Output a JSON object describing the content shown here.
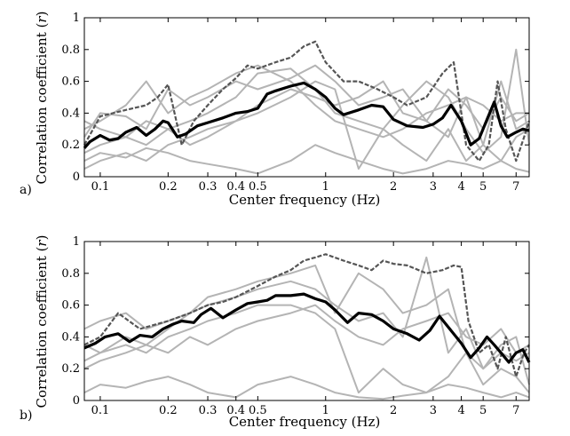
{
  "chart_data": [
    {
      "type": "line",
      "panel_label": "a)",
      "xlabel": "Center frequency (Hz)",
      "ylabel_main": "Correlation coefficient (",
      "ylabel_var": "r",
      "ylabel_end": ")",
      "xscale": "log",
      "xlim": [
        0.085,
        8.0
      ],
      "ylim": [
        0,
        1
      ],
      "xticks": [
        {
          "v": 0.1,
          "label": "0.1"
        },
        {
          "v": 0.2,
          "label": "0.2"
        },
        {
          "v": 0.3,
          "label": "0.3"
        },
        {
          "v": 0.4,
          "label": "0.4"
        },
        {
          "v": 0.5,
          "label": "0.5"
        },
        {
          "v": 1,
          "label": "1"
        },
        {
          "v": 2,
          "label": "2"
        },
        {
          "v": 3,
          "label": "3"
        },
        {
          "v": 4,
          "label": "4"
        },
        {
          "v": 5,
          "label": "5"
        },
        {
          "v": 7,
          "label": "7"
        }
      ],
      "yticks": [
        {
          "v": 0,
          "label": "0"
        },
        {
          "v": 0.2,
          "label": "0.2"
        },
        {
          "v": 0.4,
          "label": "0.4"
        },
        {
          "v": 0.6,
          "label": "0.6"
        },
        {
          "v": 0.8,
          "label": "0.8"
        },
        {
          "v": 1,
          "label": "1"
        }
      ],
      "series": [
        {
          "name": "station-1",
          "style": "gray",
          "x": [
            0.085,
            0.1,
            0.13,
            0.16,
            0.2,
            0.25,
            0.3,
            0.4,
            0.5,
            0.7,
            0.9,
            1.1,
            1.4,
            1.8,
            2.2,
            2.8,
            3.5,
            4.2,
            5,
            6,
            7,
            8
          ],
          "y": [
            0.25,
            0.4,
            0.38,
            0.3,
            0.55,
            0.45,
            0.5,
            0.6,
            0.55,
            0.62,
            0.7,
            0.6,
            0.45,
            0.5,
            0.55,
            0.35,
            0.25,
            0.5,
            0.2,
            0.6,
            0.3,
            0.35
          ]
        },
        {
          "name": "station-2",
          "style": "gray",
          "x": [
            0.085,
            0.1,
            0.13,
            0.16,
            0.2,
            0.25,
            0.3,
            0.4,
            0.5,
            0.7,
            0.9,
            1.1,
            1.4,
            1.8,
            2.2,
            2.8,
            3.5,
            4.2,
            5,
            6,
            7,
            8
          ],
          "y": [
            0.15,
            0.2,
            0.25,
            0.2,
            0.3,
            0.35,
            0.4,
            0.5,
            0.65,
            0.68,
            0.55,
            0.4,
            0.35,
            0.3,
            0.45,
            0.6,
            0.5,
            0.3,
            0.15,
            0.25,
            0.8,
            0.2
          ]
        },
        {
          "name": "station-3",
          "style": "gray",
          "x": [
            0.085,
            0.1,
            0.13,
            0.16,
            0.2,
            0.25,
            0.3,
            0.4,
            0.5,
            0.7,
            0.9,
            1.1,
            1.4,
            1.8,
            2.2,
            2.8,
            3.5,
            4.2,
            5,
            6,
            7,
            8
          ],
          "y": [
            0.05,
            0.1,
            0.15,
            0.1,
            0.2,
            0.25,
            0.3,
            0.35,
            0.4,
            0.5,
            0.6,
            0.55,
            0.05,
            0.3,
            0.2,
            0.1,
            0.3,
            0.1,
            0.2,
            0.1,
            0.25,
            0.3
          ]
        },
        {
          "name": "station-4",
          "style": "gray",
          "x": [
            0.085,
            0.1,
            0.13,
            0.16,
            0.2,
            0.25,
            0.3,
            0.4,
            0.5,
            0.7,
            0.9,
            1.1,
            1.4,
            1.8,
            2.2,
            2.8,
            3.5,
            4.2,
            5,
            6,
            7,
            8
          ],
          "y": [
            0.3,
            0.35,
            0.45,
            0.6,
            0.4,
            0.5,
            0.55,
            0.65,
            0.7,
            0.6,
            0.45,
            0.35,
            0.3,
            0.25,
            0.3,
            0.4,
            0.45,
            0.5,
            0.45,
            0.35,
            0.4,
            0.4
          ]
        },
        {
          "name": "station-5",
          "style": "gray",
          "x": [
            0.085,
            0.1,
            0.13,
            0.16,
            0.2,
            0.25,
            0.3,
            0.4,
            0.5,
            0.7,
            0.9,
            1.1,
            1.4,
            1.8,
            2.2,
            2.8,
            3.5,
            4.2,
            5,
            6,
            7,
            8
          ],
          "y": [
            0.1,
            0.15,
            0.12,
            0.18,
            0.15,
            0.1,
            0.08,
            0.05,
            0.02,
            0.1,
            0.2,
            0.15,
            0.1,
            0.05,
            0.02,
            0.05,
            0.1,
            0.08,
            0.05,
            0.1,
            0.05,
            0.03
          ]
        },
        {
          "name": "station-6",
          "style": "gray",
          "x": [
            0.085,
            0.1,
            0.13,
            0.16,
            0.2,
            0.25,
            0.3,
            0.4,
            0.5,
            0.7,
            0.9,
            1.1,
            1.4,
            1.8,
            2.2,
            2.8,
            3.5,
            4.2,
            5,
            6,
            7,
            8
          ],
          "y": [
            0.35,
            0.3,
            0.25,
            0.35,
            0.3,
            0.2,
            0.25,
            0.35,
            0.45,
            0.55,
            0.5,
            0.45,
            0.5,
            0.6,
            0.4,
            0.35,
            0.55,
            0.45,
            0.3,
            0.5,
            0.35,
            0.4
          ]
        },
        {
          "name": "dashed",
          "style": "dash",
          "x": [
            0.085,
            0.1,
            0.13,
            0.16,
            0.18,
            0.2,
            0.23,
            0.26,
            0.3,
            0.35,
            0.4,
            0.45,
            0.5,
            0.6,
            0.7,
            0.8,
            0.9,
            1.0,
            1.2,
            1.4,
            1.7,
            2.0,
            2.3,
            2.8,
            3.3,
            3.7,
            4.2,
            4.8,
            5.3,
            5.8,
            6.3,
            7.0,
            7.6,
            8.0
          ],
          "y": [
            0.2,
            0.38,
            0.42,
            0.45,
            0.5,
            0.58,
            0.2,
            0.35,
            0.45,
            0.55,
            0.62,
            0.7,
            0.68,
            0.72,
            0.75,
            0.82,
            0.85,
            0.72,
            0.6,
            0.6,
            0.55,
            0.5,
            0.45,
            0.5,
            0.65,
            0.72,
            0.2,
            0.1,
            0.2,
            0.6,
            0.3,
            0.1,
            0.25,
            0.35
          ]
        },
        {
          "name": "mean",
          "style": "mean",
          "x": [
            0.085,
            0.09,
            0.1,
            0.11,
            0.12,
            0.13,
            0.145,
            0.16,
            0.175,
            0.19,
            0.2,
            0.22,
            0.24,
            0.27,
            0.3,
            0.35,
            0.4,
            0.45,
            0.5,
            0.55,
            0.6,
            0.7,
            0.8,
            0.9,
            1.0,
            1.1,
            1.2,
            1.4,
            1.6,
            1.8,
            2.0,
            2.3,
            2.7,
            3.0,
            3.3,
            3.6,
            4.0,
            4.4,
            4.8,
            5.2,
            5.6,
            6.0,
            6.4,
            7.0,
            7.5,
            8.0
          ],
          "y": [
            0.18,
            0.22,
            0.26,
            0.23,
            0.24,
            0.28,
            0.31,
            0.26,
            0.3,
            0.35,
            0.34,
            0.25,
            0.27,
            0.32,
            0.34,
            0.37,
            0.4,
            0.41,
            0.43,
            0.52,
            0.54,
            0.57,
            0.59,
            0.55,
            0.5,
            0.43,
            0.39,
            0.42,
            0.45,
            0.44,
            0.36,
            0.32,
            0.31,
            0.33,
            0.37,
            0.45,
            0.35,
            0.2,
            0.24,
            0.36,
            0.47,
            0.32,
            0.25,
            0.28,
            0.3,
            0.29
          ]
        }
      ]
    },
    {
      "type": "line",
      "panel_label": "b)",
      "xlabel": "Center frequency (Hz)",
      "ylabel_main": "Correlation coefficient (",
      "ylabel_var": "r",
      "ylabel_end": ")",
      "xscale": "log",
      "xlim": [
        0.085,
        8.0
      ],
      "ylim": [
        0,
        1
      ],
      "xticks": [
        {
          "v": 0.1,
          "label": "0.1"
        },
        {
          "v": 0.2,
          "label": "0.2"
        },
        {
          "v": 0.3,
          "label": "0.3"
        },
        {
          "v": 0.4,
          "label": "0.4"
        },
        {
          "v": 0.5,
          "label": "0.5"
        },
        {
          "v": 1,
          "label": "1"
        },
        {
          "v": 2,
          "label": "2"
        },
        {
          "v": 3,
          "label": "3"
        },
        {
          "v": 4,
          "label": "4"
        },
        {
          "v": 5,
          "label": "5"
        },
        {
          "v": 7,
          "label": "7"
        }
      ],
      "yticks": [
        {
          "v": 0,
          "label": "0"
        },
        {
          "v": 0.2,
          "label": "0.2"
        },
        {
          "v": 0.4,
          "label": "0.4"
        },
        {
          "v": 0.6,
          "label": "0.6"
        },
        {
          "v": 0.8,
          "label": "0.8"
        },
        {
          "v": 1,
          "label": "1"
        }
      ],
      "series": [
        {
          "name": "station-1",
          "style": "gray",
          "x": [
            0.085,
            0.1,
            0.13,
            0.16,
            0.2,
            0.25,
            0.3,
            0.4,
            0.5,
            0.7,
            0.9,
            1.1,
            1.4,
            1.8,
            2.2,
            2.8,
            3.5,
            4.2,
            5,
            6,
            7,
            8
          ],
          "y": [
            0.45,
            0.5,
            0.55,
            0.45,
            0.5,
            0.55,
            0.65,
            0.7,
            0.75,
            0.8,
            0.85,
            0.55,
            0.8,
            0.7,
            0.55,
            0.6,
            0.7,
            0.3,
            0.2,
            0.35,
            0.4,
            0.1
          ]
        },
        {
          "name": "station-2",
          "style": "gray",
          "x": [
            0.085,
            0.1,
            0.13,
            0.16,
            0.2,
            0.25,
            0.3,
            0.4,
            0.5,
            0.7,
            0.9,
            1.1,
            1.4,
            1.8,
            2.2,
            2.8,
            3.5,
            4.2,
            5,
            6,
            7,
            8
          ],
          "y": [
            0.35,
            0.3,
            0.4,
            0.35,
            0.45,
            0.55,
            0.6,
            0.65,
            0.7,
            0.75,
            0.7,
            0.6,
            0.5,
            0.55,
            0.4,
            0.9,
            0.3,
            0.45,
            0.2,
            0.3,
            0.25,
            0.3
          ]
        },
        {
          "name": "station-3",
          "style": "gray",
          "x": [
            0.085,
            0.1,
            0.13,
            0.16,
            0.2,
            0.25,
            0.3,
            0.4,
            0.5,
            0.7,
            0.9,
            1.1,
            1.4,
            1.8,
            2.2,
            2.8,
            3.5,
            4.2,
            5,
            6,
            7,
            8
          ],
          "y": [
            0.25,
            0.3,
            0.35,
            0.3,
            0.4,
            0.45,
            0.5,
            0.55,
            0.6,
            0.6,
            0.55,
            0.45,
            0.05,
            0.2,
            0.1,
            0.05,
            0.15,
            0.3,
            0.1,
            0.2,
            0.15,
            0.05
          ]
        },
        {
          "name": "station-4",
          "style": "gray",
          "x": [
            0.085,
            0.1,
            0.13,
            0.16,
            0.2,
            0.25,
            0.3,
            0.4,
            0.5,
            0.7,
            0.9,
            1.1,
            1.4,
            1.8,
            2.2,
            2.8,
            3.5,
            4.2,
            5,
            6,
            7,
            8
          ],
          "y": [
            0.05,
            0.1,
            0.08,
            0.12,
            0.15,
            0.1,
            0.05,
            0.02,
            0.1,
            0.15,
            0.1,
            0.05,
            0.02,
            0.01,
            0.03,
            0.05,
            0.1,
            0.08,
            0.05,
            0.02,
            0.05,
            0.02
          ]
        },
        {
          "name": "station-5",
          "style": "gray",
          "x": [
            0.085,
            0.1,
            0.13,
            0.16,
            0.2,
            0.25,
            0.3,
            0.4,
            0.5,
            0.7,
            0.9,
            1.1,
            1.4,
            1.8,
            2.2,
            2.8,
            3.5,
            4.2,
            5,
            6,
            7,
            8
          ],
          "y": [
            0.2,
            0.25,
            0.3,
            0.35,
            0.3,
            0.4,
            0.35,
            0.45,
            0.5,
            0.55,
            0.6,
            0.5,
            0.4,
            0.35,
            0.45,
            0.5,
            0.55,
            0.4,
            0.35,
            0.45,
            0.3,
            0.35
          ]
        },
        {
          "name": "dashed",
          "style": "dash",
          "x": [
            0.085,
            0.1,
            0.12,
            0.15,
            0.2,
            0.25,
            0.3,
            0.35,
            0.4,
            0.5,
            0.6,
            0.7,
            0.8,
            0.9,
            1.0,
            1.2,
            1.4,
            1.6,
            1.8,
            2.0,
            2.3,
            2.8,
            3.3,
            3.7,
            4.0,
            4.3,
            4.8,
            5.3,
            5.8,
            6.3,
            7.0,
            7.6,
            8.0
          ],
          "y": [
            0.35,
            0.4,
            0.55,
            0.45,
            0.5,
            0.55,
            0.6,
            0.62,
            0.65,
            0.72,
            0.78,
            0.82,
            0.88,
            0.9,
            0.92,
            0.88,
            0.85,
            0.82,
            0.88,
            0.86,
            0.85,
            0.8,
            0.82,
            0.85,
            0.84,
            0.5,
            0.3,
            0.35,
            0.2,
            0.4,
            0.15,
            0.3,
            0.35
          ]
        },
        {
          "name": "mean",
          "style": "mean",
          "x": [
            0.085,
            0.095,
            0.105,
            0.12,
            0.135,
            0.15,
            0.17,
            0.19,
            0.21,
            0.23,
            0.26,
            0.28,
            0.31,
            0.35,
            0.4,
            0.45,
            0.5,
            0.55,
            0.6,
            0.7,
            0.8,
            0.9,
            1.0,
            1.1,
            1.25,
            1.4,
            1.6,
            1.8,
            2.0,
            2.3,
            2.6,
            2.9,
            3.2,
            3.6,
            4.0,
            4.4,
            4.8,
            5.2,
            5.6,
            6.0,
            6.5,
            7.0,
            7.5,
            8.0
          ],
          "y": [
            0.33,
            0.36,
            0.4,
            0.42,
            0.37,
            0.41,
            0.4,
            0.45,
            0.48,
            0.5,
            0.49,
            0.54,
            0.58,
            0.52,
            0.57,
            0.61,
            0.62,
            0.63,
            0.66,
            0.66,
            0.67,
            0.64,
            0.62,
            0.57,
            0.49,
            0.55,
            0.54,
            0.5,
            0.45,
            0.42,
            0.38,
            0.44,
            0.53,
            0.44,
            0.36,
            0.27,
            0.33,
            0.4,
            0.35,
            0.3,
            0.24,
            0.3,
            0.32,
            0.24
          ]
        }
      ]
    }
  ]
}
